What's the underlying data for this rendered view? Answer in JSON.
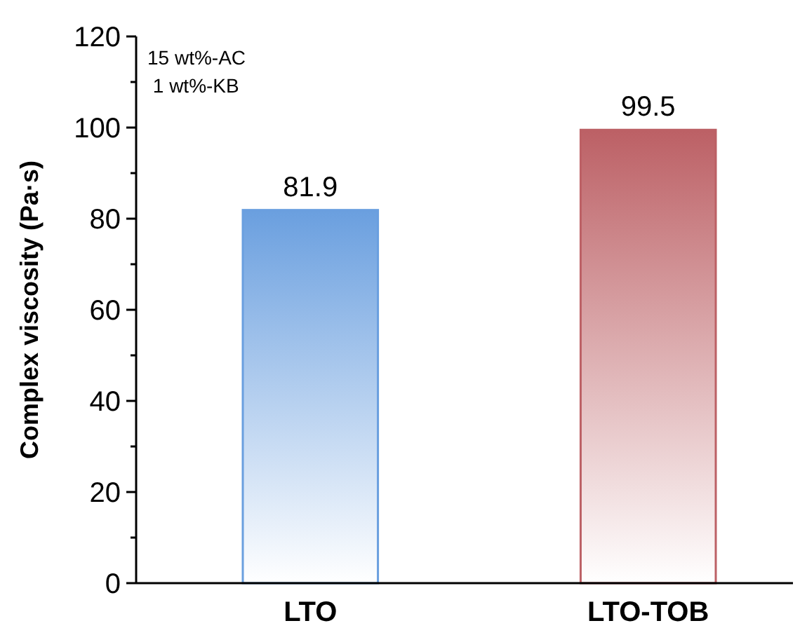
{
  "chart_data": {
    "type": "bar",
    "ylabel": "Complex viscosity (Pa·s)",
    "categories": [
      "LTO",
      "LTO-TOB"
    ],
    "values": [
      81.9,
      99.5
    ],
    "colors": [
      "#6a9fdf",
      "#bc6065"
    ],
    "ylim": [
      0,
      120
    ],
    "yticks": [
      0,
      {
        "value": 10,
        "label": null
      },
      20,
      {
        "value": 30,
        "label": null
      },
      40,
      {
        "value": 50,
        "label": null
      },
      60,
      {
        "value": 70,
        "label": null
      },
      80,
      {
        "value": 90,
        "label": null
      },
      100,
      {
        "value": 110,
        "label": null
      },
      120
    ],
    "data_labels": true,
    "grid": false,
    "annotations": [
      "15 wt%-AC",
      " 1 wt%-KB"
    ]
  }
}
